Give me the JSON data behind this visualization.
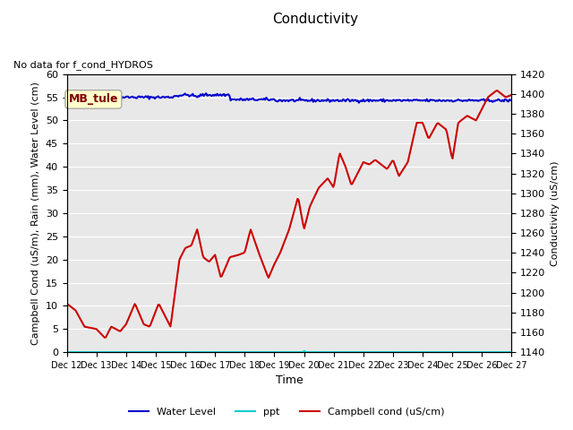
{
  "title": "Conductivity",
  "top_left_text": "No data for f_cond_HYDROS",
  "ylabel_left": "Campbell Cond (uS/m), Rain (mm), Water Level (cm)",
  "ylabel_right": "Conductivity (uS/cm)",
  "xlabel": "Time",
  "ylim_left": [
    0,
    60
  ],
  "ylim_right": [
    1140,
    1420
  ],
  "x_ticks": [
    "Dec 12",
    "Dec 13",
    "Dec 14",
    "Dec 15",
    "Dec 16",
    "Dec 17",
    "Dec 18",
    "Dec 19",
    "Dec 20",
    "Dec 21",
    "Dec 22",
    "Dec 23",
    "Dec 24",
    "Dec 25",
    "Dec 26",
    "Dec 27"
  ],
  "legend_entries": [
    {
      "label": "Water Level",
      "color": "#0000cc",
      "linestyle": "-"
    },
    {
      "label": "ppt",
      "color": "#00cccc",
      "linestyle": "-"
    },
    {
      "label": "Campbell cond (uS/cm)",
      "color": "#cc0000",
      "linestyle": "-"
    }
  ],
  "station_label": "MB_tule",
  "station_label_color": "#800000",
  "station_box_facecolor": "#ffffcc",
  "station_box_edgecolor": "#aaaaaa",
  "background_color": "#e8e8e8",
  "water_level_color": "#0000cc",
  "ppt_color": "#00dddd",
  "campbell_color": "#cc0000"
}
